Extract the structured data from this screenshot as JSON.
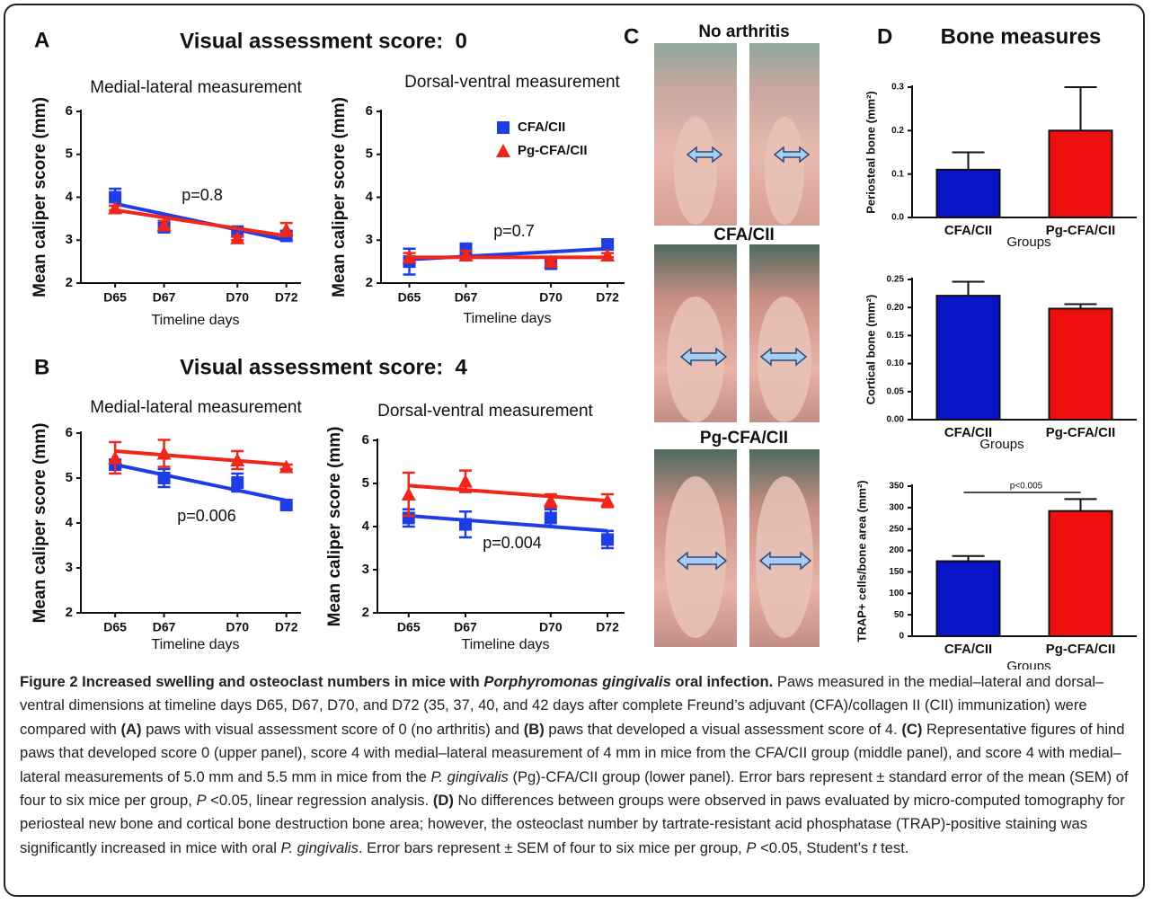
{
  "figure": {
    "labels": [
      "A",
      "B",
      "C",
      "D"
    ],
    "titles": [
      "Visual assessment score:  0",
      "Visual assessment score:  4",
      "Bone measures"
    ],
    "photo_labels": [
      {
        "text": "No arthritis",
        "color": "#000000"
      },
      {
        "text": "CFA/CII",
        "color": "#2a3ef0"
      },
      {
        "text": "Pg-CFA/CII",
        "color": "#f0241c"
      }
    ]
  },
  "chart_data": [
    {
      "type": "line",
      "title": "Medial-lateral measurement",
      "x": [
        65,
        67,
        70,
        72
      ],
      "xlim": [
        63.6,
        72.6
      ],
      "xticks": [
        {
          "value": 65,
          "label": "D65"
        },
        {
          "value": 67,
          "label": "D67"
        },
        {
          "value": 70,
          "label": "D70"
        },
        {
          "value": 72,
          "label": "D72"
        }
      ],
      "xlabel": "Timeline days",
      "ylabel": "Mean caliper score (mm)",
      "ylim": [
        2,
        6
      ],
      "yticks": [
        2,
        3,
        4,
        5,
        6
      ],
      "series": [
        {
          "color": "#1f3de6",
          "marker": "square",
          "values": [
            4.0,
            3.3,
            3.2,
            3.1
          ],
          "errors": [
            0.2,
            0.1,
            0.1,
            0.1
          ],
          "fit": [
            3.85,
            3.0
          ]
        },
        {
          "color": "#f0261b",
          "marker": "triangle",
          "values": [
            3.75,
            3.35,
            3.05,
            3.25
          ],
          "errors": [
            0.05,
            0.1,
            0.05,
            0.15
          ],
          "fit": [
            3.7,
            3.1
          ]
        }
      ],
      "annotation": "p=0.8"
    },
    {
      "type": "line",
      "title": "Dorsal-ventral measurement",
      "x": [
        65,
        67,
        70,
        72
      ],
      "xlim": [
        64.0,
        72.6
      ],
      "xticks": [
        {
          "value": 65,
          "label": "D65"
        },
        {
          "value": 67,
          "label": "D67"
        },
        {
          "value": 70,
          "label": "D70"
        },
        {
          "value": 72,
          "label": "D72"
        }
      ],
      "xlabel": "Timeline days",
      "ylabel": "Mean caliper score (mm)",
      "ylim": [
        2,
        6
      ],
      "yticks": [
        2,
        3,
        4,
        5,
        6
      ],
      "legend": "top-right",
      "series": [
        {
          "name": "CFA/CII",
          "color": "#1f3de6",
          "marker": "square",
          "values": [
            2.5,
            2.8,
            2.45,
            2.9
          ],
          "errors": [
            0.3,
            0.1,
            0.1,
            0.1
          ],
          "fit": [
            2.55,
            2.8
          ]
        },
        {
          "name": "Pg-CFA/CII",
          "color": "#f0261b",
          "marker": "triangle",
          "values": [
            2.6,
            2.65,
            2.5,
            2.65
          ],
          "errors": [
            0.1,
            0.1,
            0.05,
            0.05
          ],
          "fit": [
            2.6,
            2.6
          ]
        }
      ],
      "annotation": "p=0.7"
    },
    {
      "type": "line",
      "title": "Medial-lateral measurement",
      "x": [
        65,
        67,
        70,
        72
      ],
      "xlim": [
        63.6,
        72.6
      ],
      "xticks": [
        {
          "value": 65,
          "label": "D65"
        },
        {
          "value": 67,
          "label": "D67"
        },
        {
          "value": 70,
          "label": "D70"
        },
        {
          "value": 72,
          "label": "D72"
        }
      ],
      "xlabel": "Timeline days",
      "ylabel": "Mean caliper score (mm)",
      "ylim": [
        2,
        6
      ],
      "yticks": [
        2,
        3,
        4,
        5,
        6
      ],
      "series": [
        {
          "color": "#1f3de6",
          "marker": "square",
          "values": [
            5.3,
            5.0,
            4.9,
            4.4
          ],
          "errors": [
            0.1,
            0.2,
            0.2,
            0.05
          ],
          "fit": [
            5.3,
            4.5
          ]
        },
        {
          "color": "#f0261b",
          "marker": "triangle",
          "values": [
            5.45,
            5.55,
            5.4,
            5.25
          ],
          "errors": [
            0.35,
            0.3,
            0.2,
            0.05
          ],
          "fit": [
            5.6,
            5.3
          ]
        }
      ],
      "annotation": "p=0.006"
    },
    {
      "type": "line",
      "title": "Dorsal-ventral measurement",
      "x": [
        65,
        67,
        70,
        72
      ],
      "xlim": [
        63.9,
        72.6
      ],
      "xticks": [
        {
          "value": 65,
          "label": "D65"
        },
        {
          "value": 67,
          "label": "D67"
        },
        {
          "value": 70,
          "label": "D70"
        },
        {
          "value": 72,
          "label": "D72"
        }
      ],
      "xlabel": "Timeline days",
      "ylabel": "Mean caliper score (mm)",
      "ylim": [
        2,
        6
      ],
      "yticks": [
        2,
        3,
        4,
        5,
        6
      ],
      "series": [
        {
          "color": "#1f3de6",
          "marker": "square",
          "values": [
            4.2,
            4.05,
            4.2,
            3.7
          ],
          "errors": [
            0.2,
            0.3,
            0.2,
            0.2
          ],
          "fit": [
            4.25,
            3.9
          ]
        },
        {
          "color": "#f0261b",
          "marker": "triangle",
          "values": [
            4.75,
            5.05,
            4.6,
            4.6
          ],
          "errors": [
            0.5,
            0.25,
            0.15,
            0.15
          ],
          "fit": [
            4.95,
            4.6
          ]
        }
      ],
      "annotation": "p=0.004"
    },
    {
      "type": "bar",
      "categories": [
        "CFA/CII",
        "Pg-CFA/CII"
      ],
      "values": [
        0.11,
        0.2
      ],
      "errors": [
        0.04,
        0.1
      ],
      "colors": [
        "#0a14c8",
        "#f01010"
      ],
      "xlabel": "Groups",
      "ylabel": "Periosteal bone (mm²)",
      "ylim": [
        0,
        0.3
      ],
      "yticks": [
        {
          "value": 0,
          "label": "0.0"
        },
        0.1,
        0.2,
        0.3
      ]
    },
    {
      "type": "bar",
      "categories": [
        "CFA/CII",
        "Pg-CFA/CII"
      ],
      "values": [
        0.221,
        0.198
      ],
      "errors": [
        0.025,
        0.008
      ],
      "colors": [
        "#0a14c8",
        "#f01010"
      ],
      "xlabel": "Groups",
      "ylabel": "Cortical bone (mm²)",
      "ylim": [
        0,
        0.25
      ],
      "yticks": [
        {
          "value": 0,
          "label": "0.00"
        },
        0.05,
        {
          "value": 0.1,
          "label": "0.10"
        },
        0.15,
        {
          "value": 0.2,
          "label": "0.20"
        },
        0.25
      ]
    },
    {
      "type": "bar",
      "categories": [
        "CFA/CII",
        "Pg-CFA/CII"
      ],
      "values": [
        175,
        292
      ],
      "errors": [
        12,
        28
      ],
      "colors": [
        "#0a14c8",
        "#f01010"
      ],
      "xlabel": "Groups",
      "ylabel": "TRAP+ cells/bone area (mm²)",
      "ylim": [
        0,
        350
      ],
      "yticks": [
        0,
        50,
        100,
        150,
        200,
        250,
        300,
        350
      ],
      "annotation": "p<0.005"
    }
  ],
  "caption": [
    {
      "text": "Figure 2 Increased swelling and osteoclast numbers in mice with ",
      "bold": true
    },
    {
      "text": "Porphyromonas gingivalis",
      "bold": true,
      "italic": true
    },
    {
      "text": " oral infection.",
      "bold": true
    },
    {
      "text": " Paws measured in the medial–lateral and dorsal–ventral dimensions at timeline days D65, D67, D70, and D72 (35, 37, 40, and 42 days after complete Freund’s adjuvant (CFA)/collagen II (CII) immunization) were compared with "
    },
    {
      "text": "(A)",
      "bold": true
    },
    {
      "text": " paws with visual assessment score of 0 (no arthritis) and "
    },
    {
      "text": "(B)",
      "bold": true
    },
    {
      "text": " paws that developed a visual assessment score of 4. "
    },
    {
      "text": "(C)",
      "bold": true
    },
    {
      "text": " Representative figures of hind paws that developed score 0 (upper panel), score 4 with medial–lateral measurement of 4 mm in mice from the CFA/CII group (middle panel), and score 4 with medial–lateral measurements of 5.0 mm and 5.5 mm in mice from the "
    },
    {
      "text": "P. gingivalis",
      "italic": true
    },
    {
      "text": " (Pg)-CFA/CII group (lower panel). Error bars represent ± standard error of the mean (SEM) of four to six mice per group, "
    },
    {
      "text": "P",
      "italic": true
    },
    {
      "text": " <0.05, linear regression analysis. "
    },
    {
      "text": "(D)",
      "bold": true
    },
    {
      "text": " No differences between groups were observed in paws evaluated by micro-computed tomography for periosteal new bone and cortical bone destruction bone area; however, the osteoclast number by tartrate-resistant acid phosphatase (TRAP)-positive staining was significantly increased in mice with oral "
    },
    {
      "text": "P. gingivalis",
      "italic": true
    },
    {
      "text": ". Error bars represent ± SEM of four to six mice per group, "
    },
    {
      "text": "P",
      "italic": true
    },
    {
      "text": " <0.05, Student’s "
    },
    {
      "text": "t",
      "italic": true
    },
    {
      "text": " test."
    }
  ]
}
